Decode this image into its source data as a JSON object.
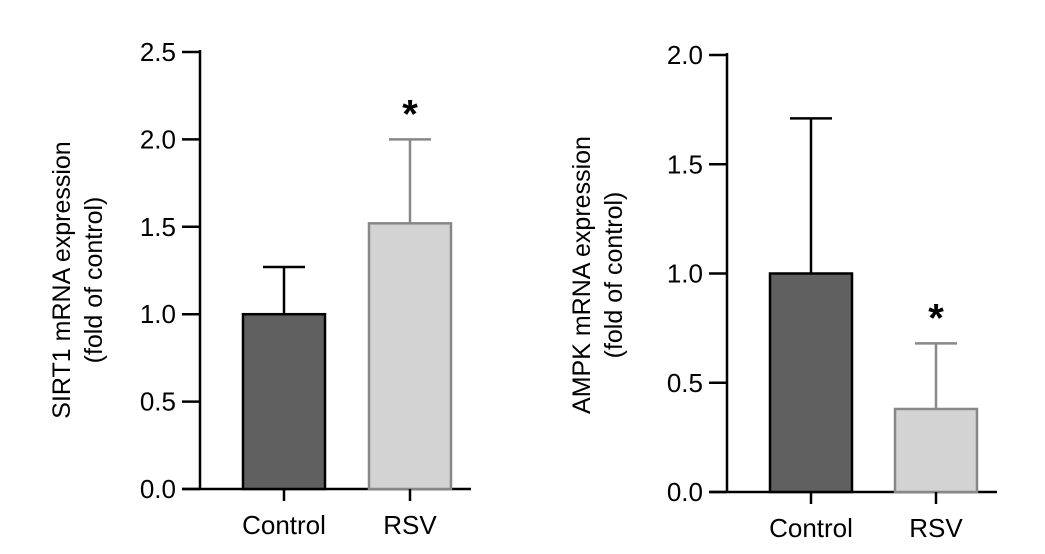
{
  "chart_data": [
    {
      "type": "bar",
      "categories": [
        "Control",
        "RSV"
      ],
      "values": [
        1.0,
        1.52
      ],
      "error_upper": [
        1.27,
        2.0
      ],
      "ylabel": [
        "SIRT1 mRNA expression",
        "(fold of control)"
      ],
      "ylim": [
        0,
        2.5
      ],
      "yticks": [
        "0.0",
        "0.5",
        "1.0",
        "1.5",
        "2.0",
        "2.5"
      ],
      "ytick_values": [
        0,
        0.5,
        1.0,
        1.5,
        2.0,
        2.5
      ],
      "bar_colors": [
        "#606060",
        "#d3d3d3"
      ],
      "bar_edge_colors": [
        "#000000",
        "#888888"
      ],
      "annotations": [
        {
          "category": "RSV",
          "text": "*"
        }
      ],
      "grid": false
    },
    {
      "type": "bar",
      "categories": [
        "Control",
        "RSV"
      ],
      "values": [
        1.0,
        0.38
      ],
      "error_upper": [
        1.71,
        0.68
      ],
      "ylabel": [
        "AMPK mRNA expression",
        "(fold of control)"
      ],
      "ylim": [
        0,
        2.0
      ],
      "yticks": [
        "0.0",
        "0.5",
        "1.0",
        "1.5",
        "2.0"
      ],
      "ytick_values": [
        0,
        0.5,
        1.0,
        1.5,
        2.0
      ],
      "bar_colors": [
        "#606060",
        "#d3d3d3"
      ],
      "bar_edge_colors": [
        "#000000",
        "#888888"
      ],
      "annotations": [
        {
          "category": "RSV",
          "text": "*"
        }
      ],
      "grid": false
    }
  ]
}
